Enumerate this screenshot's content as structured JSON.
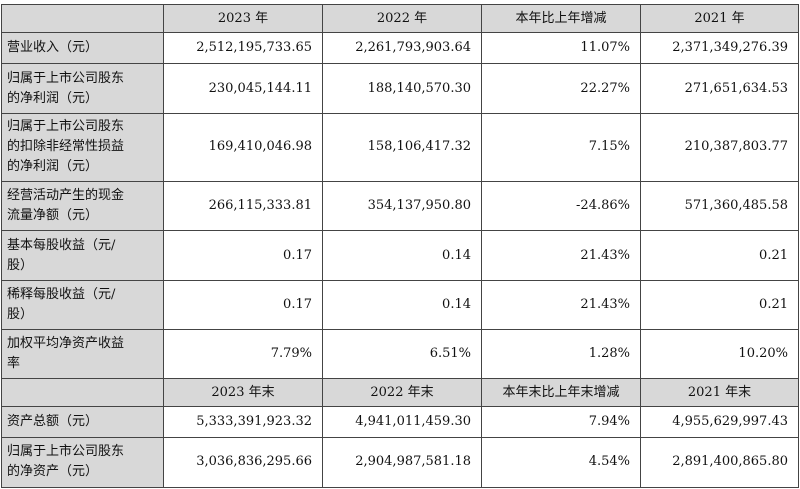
{
  "header1": [
    "",
    "2023 年",
    "2022 年",
    "本年比上年增减",
    "2021 年"
  ],
  "rows1": [
    {
      "label": [
        "营业收入（元）"
      ],
      "values": [
        "2,512,195,733.65",
        "2,261,793,903.64",
        "11.07%",
        "2,371,349,276.39"
      ]
    },
    {
      "label": [
        "归属于上市公司股东",
        "的净利润（元）"
      ],
      "values": [
        "230,045,144.11",
        "188,140,570.30",
        "22.27%",
        "271,651,634.53"
      ]
    },
    {
      "label": [
        "归属于上市公司股东",
        "的扣除非经常性损益",
        "的净利润（元）"
      ],
      "values": [
        "169,410,046.98",
        "158,106,417.32",
        "7.15%",
        "210,387,803.77"
      ]
    },
    {
      "label": [
        "经营活动产生的现金",
        "流量净额（元）"
      ],
      "values": [
        "266,115,333.81",
        "354,137,950.80",
        "-24.86%",
        "571,360,485.58"
      ]
    },
    {
      "label": [
        "基本每股收益（元/",
        "股）"
      ],
      "values": [
        "0.17",
        "0.14",
        "21.43%",
        "0.21"
      ]
    },
    {
      "label": [
        "稀释每股收益（元/",
        "股）"
      ],
      "values": [
        "0.17",
        "0.14",
        "21.43%",
        "0.21"
      ]
    },
    {
      "label": [
        "加权平均净资产收益",
        "率"
      ],
      "values": [
        "7.79%",
        "6.51%",
        "1.28%",
        "10.20%"
      ]
    }
  ],
  "header2": [
    "",
    "2023 年末",
    "2022 年末",
    "本年末比上年末增减",
    "2021 年末"
  ],
  "rows2": [
    {
      "label": [
        "资产总额（元）"
      ],
      "values": [
        "5,333,391,923.32",
        "4,941,011,459.30",
        "7.94%",
        "4,955,629,997.43"
      ]
    },
    {
      "label": [
        "归属于上市公司股东",
        "的净资产（元）"
      ],
      "values": [
        "3,036,836,295.66",
        "2,904,987,581.18",
        "4.54%",
        "2,891,400,865.80"
      ]
    }
  ]
}
